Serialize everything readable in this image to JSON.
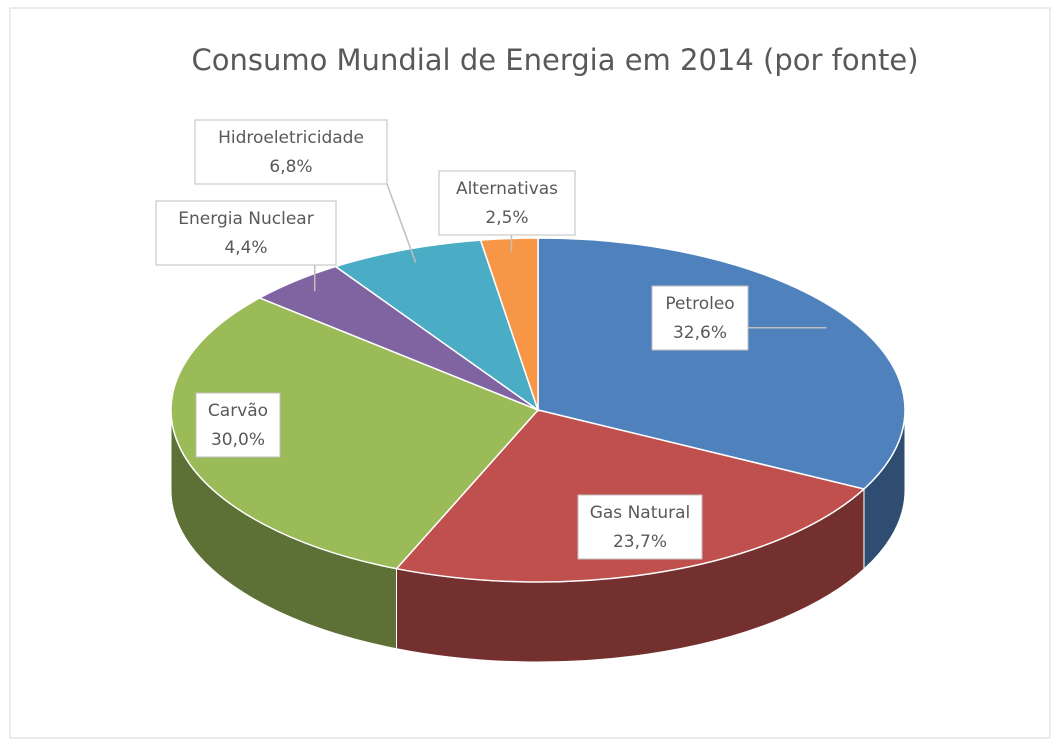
{
  "chart_data": {
    "type": "pie",
    "title": "Consumo Mundial de Energia em 2014 (por fonte)",
    "categories": [
      "Petroleo",
      "Gas Natural",
      "Carvão",
      "Energia Nuclear",
      "Hidroeletricidade",
      "Alternativas"
    ],
    "values": [
      32.6,
      23.7,
      30.0,
      4.4,
      6.8,
      2.5
    ],
    "value_labels": [
      "32,6%",
      "23,7%",
      "30,0%",
      "4,4%",
      "6,8%",
      "2,5%"
    ],
    "colors": [
      "#4f81bd",
      "#c0504d",
      "#9bbb59",
      "#8064a2",
      "#4bacc6",
      "#f79646"
    ]
  }
}
